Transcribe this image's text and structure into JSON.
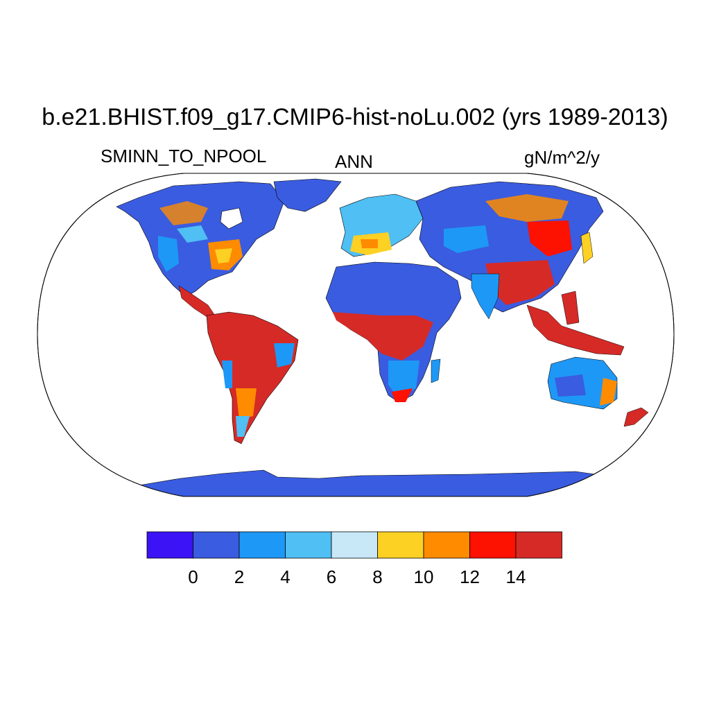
{
  "title": "b.e21.BHIST.f09_g17.CMIP6-hist-noLu.002 (yrs 1989-2013)",
  "left_string": "SMINN_TO_NPOOL",
  "center_string": "ANN",
  "right_string": "gN/m^2/y",
  "colors": {
    "ocean": "#ffffff",
    "outline": "#000000"
  },
  "colorbar": {
    "colors": [
      "#3b13f5",
      "#3a5ce0",
      "#1e98f6",
      "#4fbff4",
      "#c8e8f8",
      "#fdd024",
      "#fe8b00",
      "#fd1100",
      "#d62a27"
    ],
    "tick_labels": [
      "0",
      "2",
      "4",
      "6",
      "8",
      "10",
      "12",
      "14"
    ]
  },
  "map": {
    "projection": "Robinson",
    "field": "SMINN_TO_NPOOL"
  }
}
